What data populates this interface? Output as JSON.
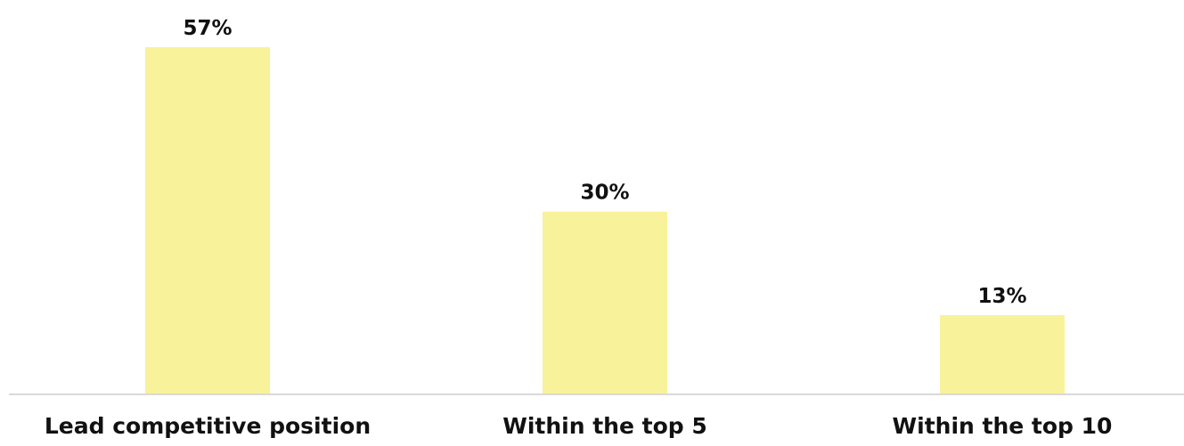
{
  "chart_data": {
    "type": "bar",
    "categories": [
      "Lead competitive position",
      "Within the top 5",
      "Within the top 10"
    ],
    "values": [
      57,
      30,
      13
    ],
    "data_labels": [
      "57%",
      "30%",
      "13%"
    ],
    "ylim": [
      0,
      57
    ],
    "grid": false,
    "legend": "none",
    "bar_color": "#f8f29a",
    "axis_color": "#d9d9d9"
  }
}
